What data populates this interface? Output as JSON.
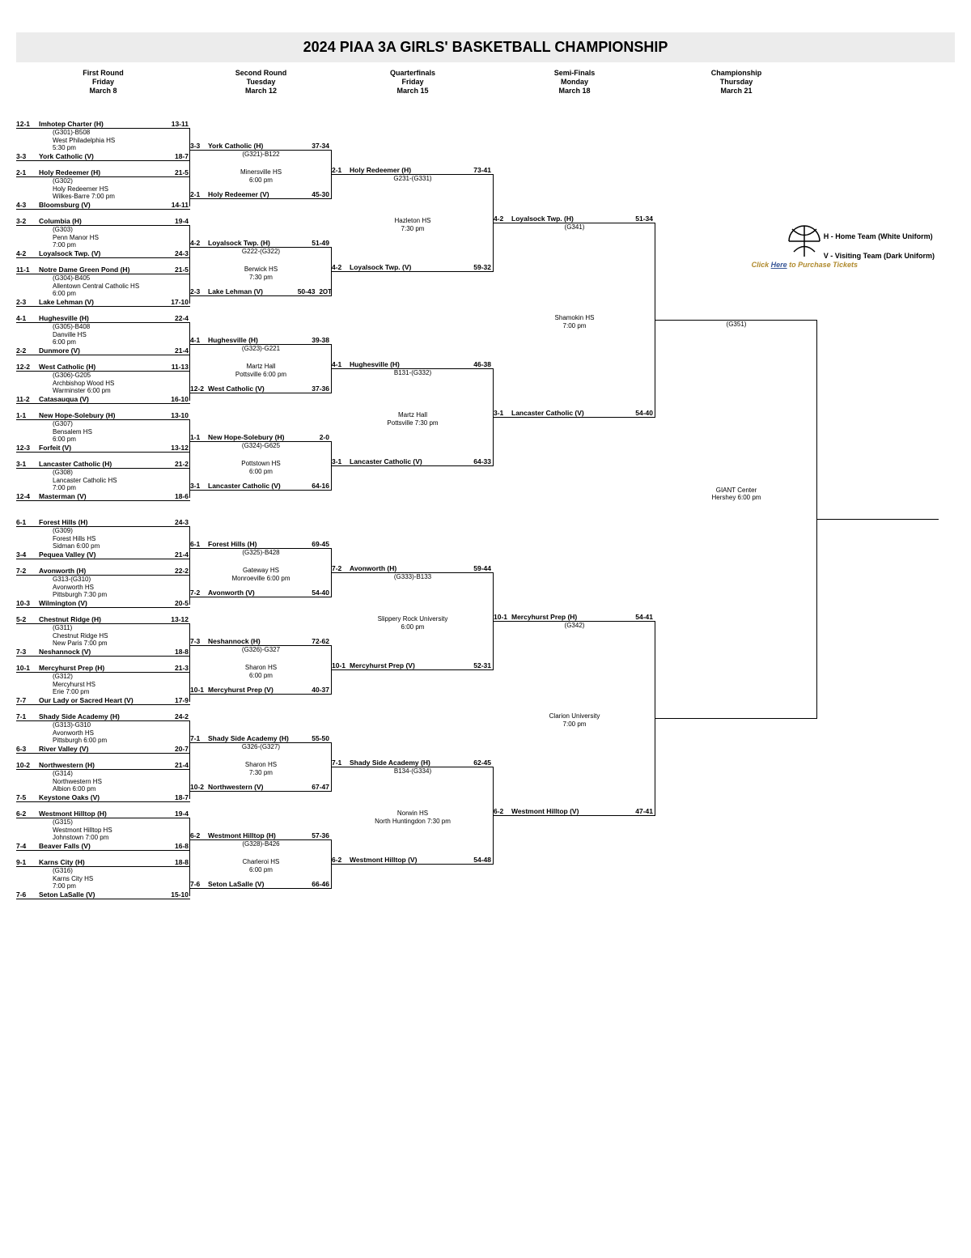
{
  "title": "2024 PIAA 3A GIRLS' BASKETBALL CHAMPIONSHIP",
  "rounds": [
    {
      "name": "First Round",
      "day": "Friday",
      "date": "March 8"
    },
    {
      "name": "Second Round",
      "day": "Tuesday",
      "date": "March 12"
    },
    {
      "name": "Quarterfinals",
      "day": "Friday",
      "date": "March 15"
    },
    {
      "name": "Semi-Finals",
      "day": "Monday",
      "date": "March 18"
    },
    {
      "name": "Championship",
      "day": "Thursday",
      "date": "March 21"
    }
  ],
  "legend": {
    "home": "H - Home Team (White Uniform)",
    "visit": "V - Visiting Team (Dark Uniform)"
  },
  "ticket_prefix": "Click ",
  "ticket_link": "Here",
  "ticket_suffix": " to Purchase Tickets",
  "giant": {
    "l1": "GIANT Center",
    "l2": "Hershey 6:00 pm"
  },
  "r1": [
    {
      "t1s": "12-1",
      "t1": "Imhotep Charter (H)",
      "t1r": "13-11",
      "g": "(G301)-B508",
      "loc": "West Philadelphia HS",
      "time": "5:30 pm",
      "t2s": "3-3",
      "t2": "York Catholic (V)",
      "t2r": "18-7"
    },
    {
      "t1s": "2-1",
      "t1": "Holy Redeemer (H)",
      "t1r": "21-5",
      "g": "(G302)",
      "loc": "Holy Redeemer HS",
      "time": "Wilkes-Barre 7:00 pm",
      "t2s": "4-3",
      "t2": "Bloomsburg (V)",
      "t2r": "14-11"
    },
    {
      "t1s": "3-2",
      "t1": "Columbia (H)",
      "t1r": "19-4",
      "g": "(G303)",
      "loc": "Penn Manor HS",
      "time": "7:00 pm",
      "t2s": "4-2",
      "t2": "Loyalsock Twp. (V)",
      "t2r": "24-3"
    },
    {
      "t1s": "11-1",
      "t1": "Notre Dame Green Pond (H)",
      "t1r": "21-5",
      "g": "(G304)-B405",
      "loc": "Allentown Central Catholic HS",
      "time": "6:00 pm",
      "t2s": "2-3",
      "t2": "Lake Lehman (V)",
      "t2r": "17-10"
    },
    {
      "t1s": "4-1",
      "t1": "Hughesville (H)",
      "t1r": "22-4",
      "g": "(G305)-B408",
      "loc": "Danville HS",
      "time": "6:00 pm",
      "t2s": "2-2",
      "t2": "Dunmore (V)",
      "t2r": "21-4"
    },
    {
      "t1s": "12-2",
      "t1": "West Catholic (H)",
      "t1r": "11-13",
      "g": "(G306)-G205",
      "loc": "Archbishop Wood HS",
      "time": "Warminster 6:00 pm",
      "t2s": "11-2",
      "t2": "Catasauqua (V)",
      "t2r": "16-10"
    },
    {
      "t1s": "1-1",
      "t1": "New Hope-Solebury (H)",
      "t1r": "13-10",
      "g": "(G307)",
      "loc": "Bensalem HS",
      "time": "6:00 pm",
      "t2s": "12-3",
      "t2": "Forfeit (V)",
      "t2r": "13-12"
    },
    {
      "t1s": "3-1",
      "t1": "Lancaster Catholic (H)",
      "t1r": "21-2",
      "g": "(G308)",
      "loc": "Lancaster Catholic HS",
      "time": "7:00 pm",
      "t2s": "12-4",
      "t2": "Masterman (V)",
      "t2r": "18-6"
    },
    {
      "t1s": "6-1",
      "t1": "Forest Hills (H)",
      "t1r": "24-3",
      "g": "(G309)",
      "loc": "Forest Hills HS",
      "time": "Sidman 6:00 pm",
      "t2s": "3-4",
      "t2": "Pequea Valley (V)",
      "t2r": "21-4"
    },
    {
      "t1s": "7-2",
      "t1": "Avonworth (H)",
      "t1r": "22-2",
      "g": "G313-(G310)",
      "loc": "Avonworth HS",
      "time": "Pittsburgh 7:30 pm",
      "t2s": "10-3",
      "t2": "Wilmington (V)",
      "t2r": "20-5"
    },
    {
      "t1s": "5-2",
      "t1": "Chestnut Ridge (H)",
      "t1r": "13-12",
      "g": "(G311)",
      "loc": "Chestnut Ridge HS",
      "time": "New Paris 7:00 pm",
      "t2s": "7-3",
      "t2": "Neshannock (V)",
      "t2r": "18-8"
    },
    {
      "t1s": "10-1",
      "t1": "Mercyhurst Prep (H)",
      "t1r": "21-3",
      "g": "(G312)",
      "loc": "Mercyhurst HS",
      "time": "Erie 7:00 pm",
      "t2s": "7-7",
      "t2": "Our Lady or Sacred Heart (V)",
      "t2r": "17-9"
    },
    {
      "t1s": "7-1",
      "t1": "Shady Side Academy (H)",
      "t1r": "24-2",
      "g": "(G313)-G310",
      "loc": "Avonworth HS",
      "time": "Pittsburgh 6:00 pm",
      "t2s": "6-3",
      "t2": "River Valley (V)",
      "t2r": "20-7"
    },
    {
      "t1s": "10-2",
      "t1": "Northwestern (H)",
      "t1r": "21-4",
      "g": "(G314)",
      "loc": "Northwestern HS",
      "time": "Albion 6:00 pm",
      "t2s": "7-5",
      "t2": "Keystone Oaks (V)",
      "t2r": "18-7"
    },
    {
      "t1s": "6-2",
      "t1": "Westmont Hilltop (H)",
      "t1r": "19-4",
      "g": "(G315)",
      "loc": "Westmont Hilltop HS",
      "time": "Johnstown 7:00 pm",
      "t2s": "7-4",
      "t2": "Beaver Falls (V)",
      "t2r": "16-8"
    },
    {
      "t1s": "9-1",
      "t1": "Karns City (H)",
      "t1r": "18-8",
      "g": "(G316)",
      "loc": "Karns City HS",
      "time": "7:00 pm",
      "t2s": "7-6",
      "t2": "Seton LaSalle (V)",
      "t2r": "15-10"
    }
  ],
  "r2": [
    {
      "s": "3-3",
      "t": "York Catholic (H)",
      "sc": "37-34",
      "g": "(G321)-B122",
      "loc": "Minersville HS",
      "time": "6:00 pm"
    },
    {
      "s": "2-1",
      "t": "Holy Redeemer (V)",
      "sc": "45-30",
      "g": "",
      "loc": "",
      "time": ""
    },
    {
      "s": "4-2",
      "t": "Loyalsock Twp. (H)",
      "sc": "51-49",
      "g": "G222-(G322)",
      "loc": "Berwick HS",
      "time": "7:30 pm"
    },
    {
      "s": "2-3",
      "t": "Lake Lehman (V)",
      "sc": "50-43",
      "note": "2OT",
      "g": "",
      "loc": "",
      "time": ""
    },
    {
      "s": "4-1",
      "t": "Hughesville (H)",
      "sc": "39-38",
      "g": "(G323)-G221",
      "loc": "Martz Hall",
      "time": "Pottsville 6:00 pm"
    },
    {
      "s": "12-2",
      "t": "West Catholic (V)",
      "sc": "37-36",
      "g": "",
      "loc": "",
      "time": ""
    },
    {
      "s": "1-1",
      "t": "New Hope-Solebury (H)",
      "sc": "2-0",
      "g": "(G324)-G625",
      "loc": "Pottstown HS",
      "time": "6:00 pm"
    },
    {
      "s": "3-1",
      "t": "Lancaster Catholic (V)",
      "sc": "64-16",
      "g": "",
      "loc": "",
      "time": ""
    },
    {
      "s": "6-1",
      "t": "Forest Hills (H)",
      "sc": "69-45",
      "g": "(G325)-B428",
      "loc": "Gateway HS",
      "time": "Monroeville 6:00 pm"
    },
    {
      "s": "7-2",
      "t": "Avonworth (V)",
      "sc": "54-40",
      "g": "",
      "loc": "",
      "time": ""
    },
    {
      "s": "7-3",
      "t": "Neshannock (H)",
      "sc": "72-62",
      "g": "(G326)-G327",
      "loc": "Sharon HS",
      "time": "6:00 pm"
    },
    {
      "s": "10-1",
      "t": "Mercyhurst Prep (V)",
      "sc": "40-37",
      "g": "",
      "loc": "",
      "time": ""
    },
    {
      "s": "7-1",
      "t": "Shady Side Academy (H)",
      "sc": "55-50",
      "g": "G326-(G327)",
      "loc": "Sharon HS",
      "time": "7:30 pm"
    },
    {
      "s": "10-2",
      "t": "Northwestern (V)",
      "sc": "67-47",
      "g": "",
      "loc": "",
      "time": ""
    },
    {
      "s": "6-2",
      "t": "Westmont Hilltop (H)",
      "sc": "57-36",
      "g": "(G328)-B426",
      "loc": "Charleroi HS",
      "time": "6:00 pm"
    },
    {
      "s": "7-6",
      "t": "Seton LaSalle (V)",
      "sc": "66-46",
      "g": "",
      "loc": "",
      "time": ""
    }
  ],
  "r3": [
    {
      "s": "2-1",
      "t": "Holy Redeemer (H)",
      "sc": "73-41",
      "g": "G231-(G331)",
      "loc": "Hazleton HS",
      "time": "7:30 pm"
    },
    {
      "s": "4-2",
      "t": "Loyalsock Twp. (V)",
      "sc": "59-32",
      "g": "",
      "loc": "",
      "time": ""
    },
    {
      "s": "4-1",
      "t": "Hughesville (H)",
      "sc": "46-38",
      "g": "B131-(G332)",
      "loc": "Martz Hall",
      "time": "Pottsville 7:30 pm"
    },
    {
      "s": "3-1",
      "t": "Lancaster Catholic (V)",
      "sc": "64-33",
      "g": "",
      "loc": "",
      "time": ""
    },
    {
      "s": "7-2",
      "t": "Avonworth (H)",
      "sc": "59-44",
      "g": "(G333)-B133",
      "loc": "Slippery Rock University",
      "time": "6:00 pm"
    },
    {
      "s": "10-1",
      "t": "Mercyhurst Prep (V)",
      "sc": "52-31",
      "g": "",
      "loc": "",
      "time": ""
    },
    {
      "s": "7-1",
      "t": "Shady Side Academy (H)",
      "sc": "62-45",
      "g": "B134-(G334)",
      "loc": "Norwin HS",
      "time": "North Huntingdon 7:30 pm"
    },
    {
      "s": "6-2",
      "t": "Westmont Hilltop (V)",
      "sc": "54-48",
      "g": "",
      "loc": "",
      "time": ""
    }
  ],
  "r4": [
    {
      "s": "4-2",
      "t": "Loyalsock Twp. (H)",
      "sc": "51-34",
      "g": "(G341)",
      "loc": "Shamokin HS",
      "time": "7:00 pm"
    },
    {
      "s": "3-1",
      "t": "Lancaster Catholic (V)",
      "sc": "54-40",
      "g": "",
      "loc": "",
      "time": ""
    },
    {
      "s": "10-1",
      "t": "Mercyhurst Prep (H)",
      "sc": "54-41",
      "g": "(G342)",
      "loc": "Clarion University",
      "time": "7:00 pm"
    },
    {
      "s": "6-2",
      "t": "Westmont Hilltop (V)",
      "sc": "47-41",
      "g": "",
      "loc": "",
      "time": ""
    }
  ],
  "r5": [
    {
      "g": "(G351)"
    }
  ]
}
